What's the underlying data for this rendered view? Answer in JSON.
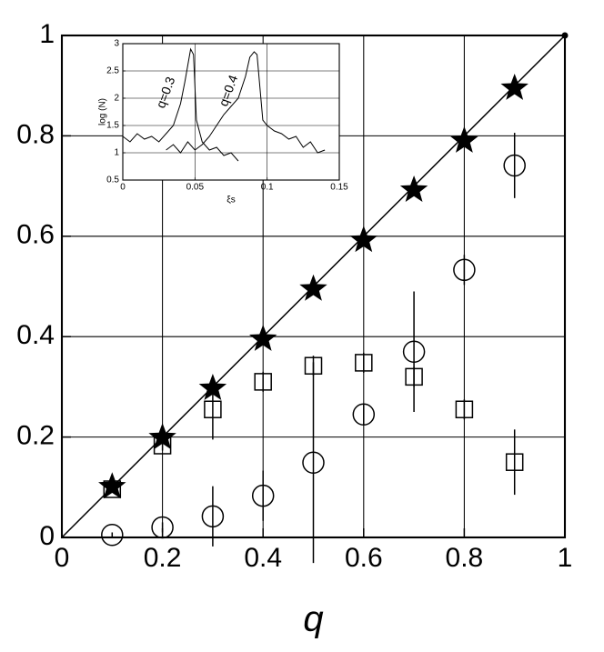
{
  "chart_data": [
    {
      "type": "scatter",
      "xlabel": "q",
      "x": [
        0.1,
        0.2,
        0.3,
        0.4,
        0.5,
        0.6,
        0.7,
        0.8,
        0.9
      ],
      "series": [
        {
          "marker": "star",
          "color": "#000000",
          "values": [
            0.101,
            0.199,
            0.297,
            0.395,
            0.495,
            0.592,
            0.692,
            0.79,
            0.895
          ]
        },
        {
          "marker": "square",
          "color": "#000000",
          "values": [
            0.096,
            0.183,
            0.255,
            0.31,
            0.342,
            0.348,
            0.32,
            0.255,
            0.15
          ],
          "errors": [
            0.005,
            0.01,
            0.06,
            0.02,
            0.02,
            0.02,
            0.02,
            0.02,
            0.065
          ]
        },
        {
          "marker": "circle",
          "color": "#000000",
          "values": [
            0.005,
            0.02,
            0.042,
            0.083,
            0.149,
            0.245,
            0.37,
            0.533,
            0.741
          ],
          "errors": [
            0.005,
            0.01,
            0.06,
            0.05,
            0.2,
            0.02,
            0.12,
            0.03,
            0.065
          ]
        }
      ],
      "xlim": [
        0,
        1
      ],
      "ylim": [
        0,
        1
      ],
      "xticks": [
        0,
        0.2,
        0.4,
        0.6,
        0.8,
        1
      ],
      "yticks": [
        0,
        0.2,
        0.4,
        0.6,
        0.8,
        1
      ],
      "grid": true
    },
    {
      "type": "line",
      "xlabel": "ξs",
      "ylabel": "log (N)",
      "series": [
        {
          "color": "#000000",
          "x": [
            0,
            0.005,
            0.01,
            0.015,
            0.02,
            0.025,
            0.03,
            0.035,
            0.04,
            0.043,
            0.045,
            0.047,
            0.049,
            0.051,
            0.055,
            0.06,
            0.065,
            0.07,
            0.075,
            0.08
          ],
          "values": [
            1.3,
            1.2,
            1.35,
            1.25,
            1.3,
            1.2,
            1.35,
            1.5,
            1.9,
            2.3,
            2.6,
            2.9,
            2.8,
            1.6,
            1.2,
            1.05,
            1.1,
            0.95,
            1.0,
            0.85
          ]
        },
        {
          "color": "#000000",
          "x": [
            0.03,
            0.035,
            0.04,
            0.045,
            0.05,
            0.055,
            0.06,
            0.065,
            0.07,
            0.075,
            0.08,
            0.085,
            0.088,
            0.091,
            0.093,
            0.095,
            0.097,
            0.1,
            0.105,
            0.11,
            0.115,
            0.12,
            0.125,
            0.13,
            0.135,
            0.14
          ],
          "values": [
            1.05,
            1.15,
            1.0,
            1.2,
            1.05,
            1.15,
            1.3,
            1.5,
            1.7,
            1.85,
            2.0,
            2.4,
            2.75,
            2.85,
            2.8,
            2.2,
            1.6,
            1.5,
            1.4,
            1.35,
            1.25,
            1.3,
            1.1,
            1.2,
            1.0,
            1.05
          ]
        }
      ],
      "annotations": [
        "q=0.3",
        "q=0.4"
      ],
      "xlim": [
        0,
        0.15
      ],
      "ylim": [
        0.5,
        3
      ],
      "xticks": [
        0,
        0.05,
        0.1,
        0.15
      ],
      "yticks": [
        0.5,
        1,
        1.5,
        2,
        2.5,
        3
      ],
      "grid": true
    }
  ]
}
